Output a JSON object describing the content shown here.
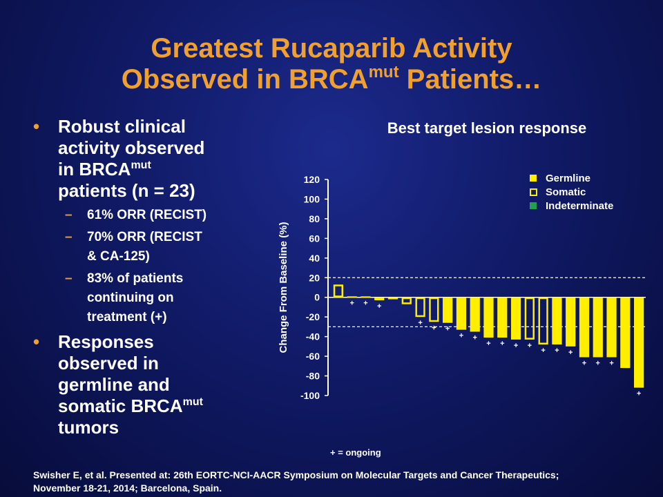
{
  "title": {
    "line1": "Greatest Rucaparib Activity",
    "line2_pre": "Observed in BRCA",
    "line2_sup": "mut",
    "line2_post": " Patients…"
  },
  "bullets": {
    "b1_line1": "Robust clinical",
    "b1_line2": "activity observed",
    "b1_line3_pre": "in BRCA",
    "b1_line3_sup": "mut",
    "b1_line4": "patients (n = 23)",
    "sub1": "61%  ORR (RECIST)",
    "sub2_line1": "70%  ORR (RECIST",
    "sub2_line2": "& CA-125)",
    "sub3_line1": "83%  of patients",
    "sub3_line2": "continuing on",
    "sub3_line3": "treatment (+)",
    "b2_line1": "Responses",
    "b2_line2": "observed in",
    "b2_line3": "germline and",
    "b2_line4_pre": "somatic BRCA",
    "b2_line4_sup": "mut",
    "b2_line5": "tumors",
    "bullet_mark": "•",
    "dash_mark": "–"
  },
  "footnote": {
    "line1": "Swisher E, et al. Presented at: 26th EORTC-NCI-AACR Symposium on Molecular  Targets and Cancer Therapeutics;",
    "line2": "November 18-21, 2014; Barcelona, Spain."
  },
  "ongoing_note": "+ = ongoing",
  "colors": {
    "germline": "#ffee00",
    "somatic_outline": "#ffee00",
    "indeterminate": "#22a050",
    "title": "#f0a030"
  },
  "chart_data": {
    "type": "bar",
    "title": "Best target lesion response",
    "ylabel": "Change From Baseline (%)",
    "xlabel": "",
    "ylim": [
      -100,
      120
    ],
    "yticks": [
      -100,
      -80,
      -60,
      -40,
      -20,
      0,
      20,
      40,
      60,
      80,
      100,
      120
    ],
    "reference_lines": [
      20,
      -30
    ],
    "legend": {
      "position": "top-right",
      "entries": [
        {
          "name": "Germline",
          "style": "filled"
        },
        {
          "name": "Somatic",
          "style": "outline"
        },
        {
          "name": "Indeterminate",
          "style": "green"
        }
      ]
    },
    "ongoing_marker": "+",
    "bars": [
      {
        "value": 13,
        "type": "Somatic",
        "ongoing": false
      },
      {
        "value": 1,
        "type": "Germline",
        "ongoing": true
      },
      {
        "value": 1,
        "type": "Germline",
        "ongoing": true
      },
      {
        "value": -3,
        "type": "Germline",
        "ongoing": true
      },
      {
        "value": -2,
        "type": "Germline",
        "ongoing": false
      },
      {
        "value": -7,
        "type": "Somatic",
        "ongoing": false
      },
      {
        "value": -20,
        "type": "Somatic",
        "ongoing": true
      },
      {
        "value": -25,
        "type": "Somatic",
        "ongoing": true
      },
      {
        "value": -26,
        "type": "Germline",
        "ongoing": true
      },
      {
        "value": -33,
        "type": "Germline",
        "ongoing": true
      },
      {
        "value": -35,
        "type": "Germline",
        "ongoing": true
      },
      {
        "value": -41,
        "type": "Germline",
        "ongoing": true
      },
      {
        "value": -41,
        "type": "Germline",
        "ongoing": true
      },
      {
        "value": -43,
        "type": "Germline",
        "ongoing": true
      },
      {
        "value": -43,
        "type": "Somatic",
        "ongoing": true
      },
      {
        "value": -48,
        "type": "Somatic",
        "ongoing": true
      },
      {
        "value": -48,
        "type": "Germline",
        "ongoing": true
      },
      {
        "value": -50,
        "type": "Germline",
        "ongoing": true
      },
      {
        "value": -61,
        "type": "Germline",
        "ongoing": true
      },
      {
        "value": -61,
        "type": "Germline",
        "ongoing": true
      },
      {
        "value": -61,
        "type": "Germline",
        "ongoing": true
      },
      {
        "value": -72,
        "type": "Germline",
        "ongoing": false
      },
      {
        "value": -92,
        "type": "Germline",
        "ongoing": true
      }
    ]
  }
}
